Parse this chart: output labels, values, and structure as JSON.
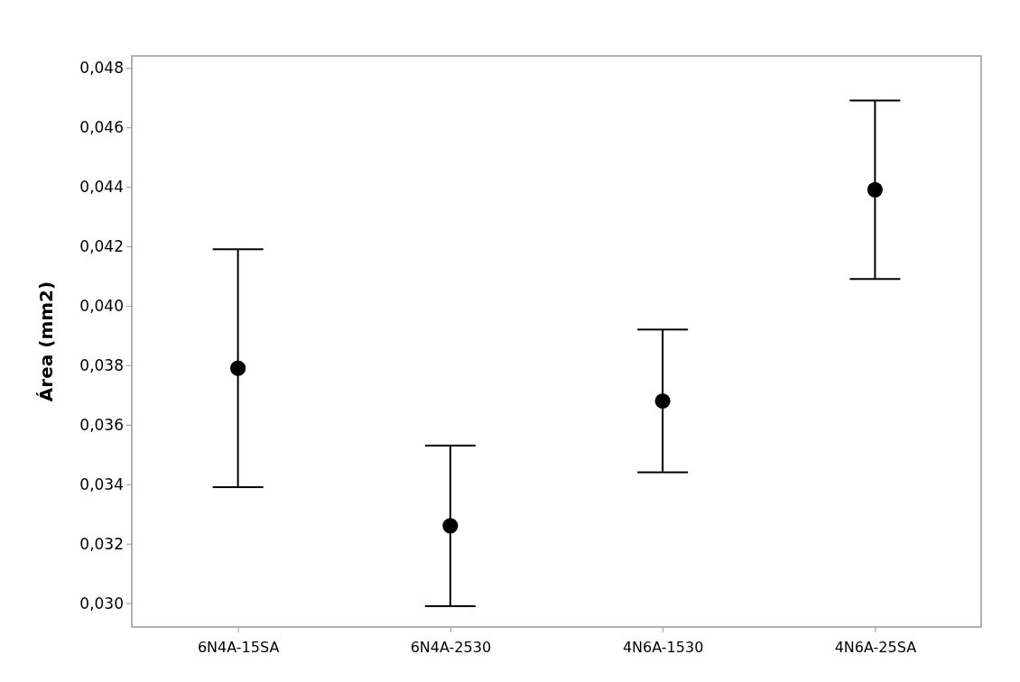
{
  "chart_data": {
    "type": "scatter",
    "ylabel": "Área (mm2)",
    "categories": [
      "6N4A-15SA",
      "6N4A-2530",
      "4N6A-1530",
      "4N6A-25SA"
    ],
    "color": "#000000",
    "values": [
      0.0379,
      0.0326,
      0.0368,
      0.0439
    ],
    "errors": [
      0.004,
      0.0027,
      0.0024,
      0.003
    ],
    "ylim": [
      0.0292,
      0.0484
    ],
    "yticks": [
      {
        "value": 0.03,
        "label": "0,030"
      },
      {
        "value": 0.032,
        "label": "0,032"
      },
      {
        "value": 0.034,
        "label": "0,034"
      },
      {
        "value": 0.036,
        "label": "0,036"
      },
      {
        "value": 0.038,
        "label": "0,038"
      },
      {
        "value": 0.04,
        "label": "0,040"
      },
      {
        "value": 0.042,
        "label": "0,042"
      },
      {
        "value": 0.044,
        "label": "0,044"
      },
      {
        "value": 0.046,
        "label": "0,046"
      },
      {
        "value": 0.048,
        "label": "0,048"
      }
    ],
    "marker": "circle",
    "grid": false
  }
}
